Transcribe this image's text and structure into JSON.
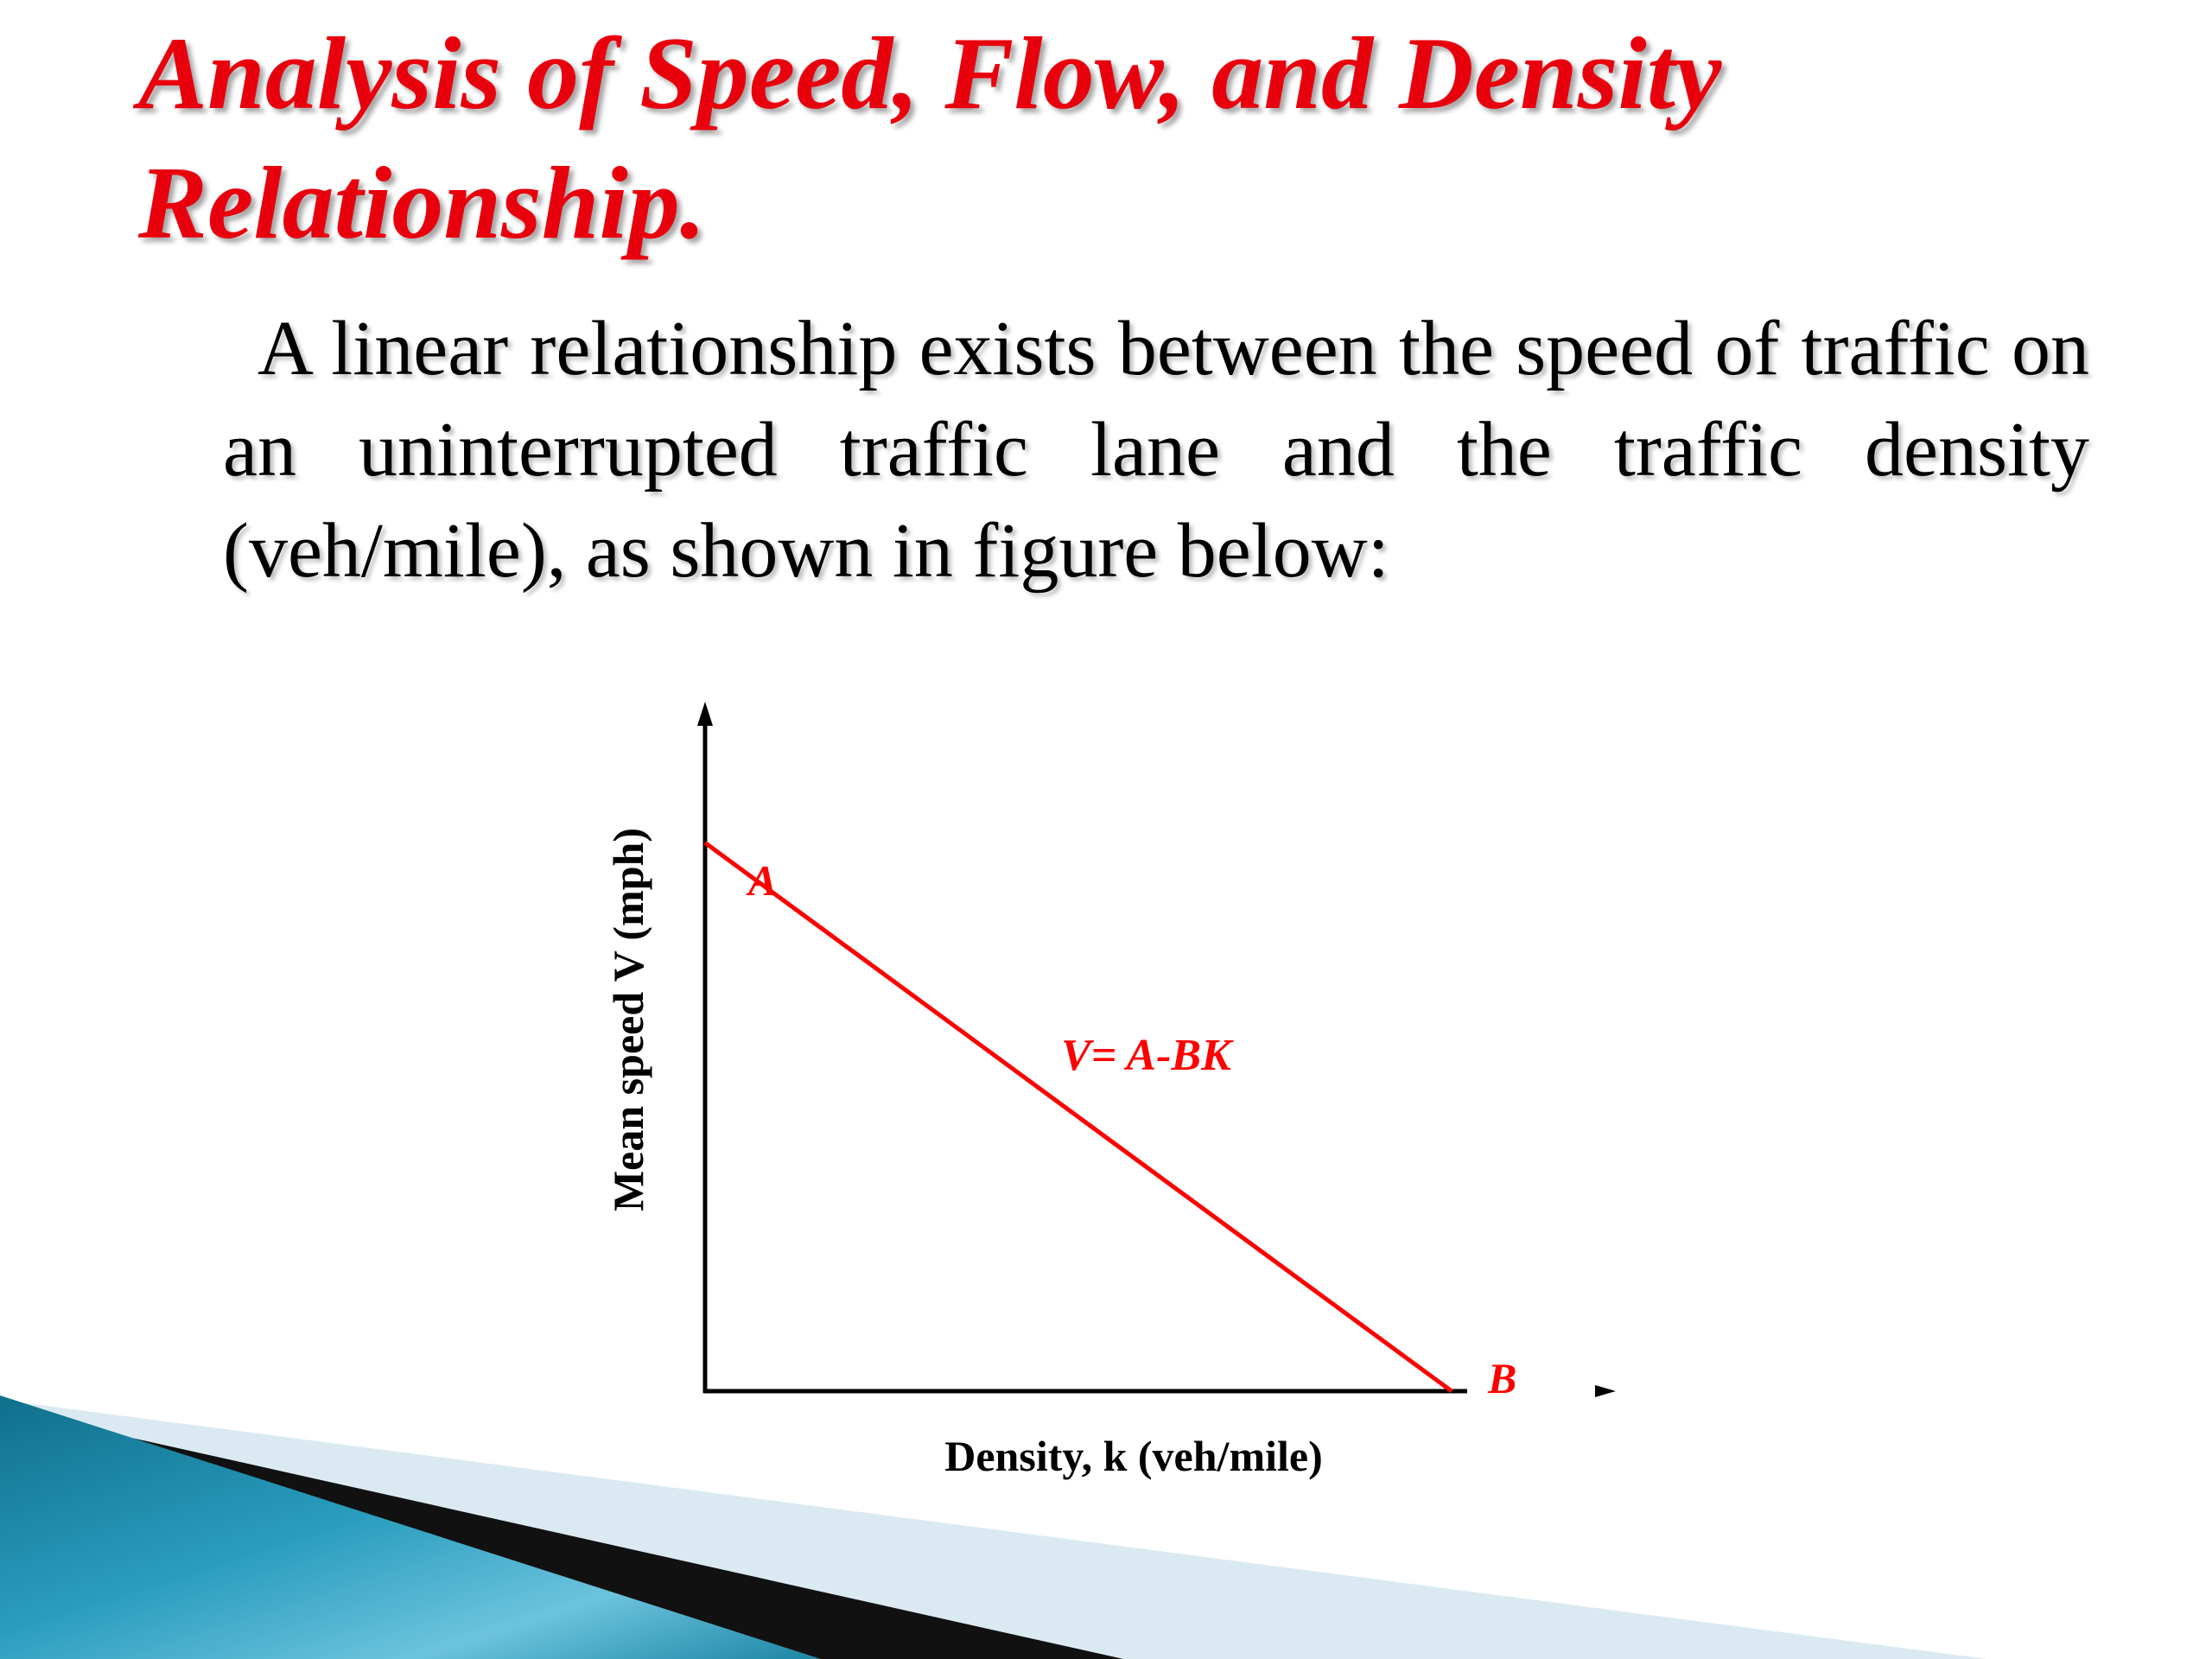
{
  "slide": {
    "title": "Analysis of Speed, Flow, and Density Relationship.",
    "body": "A linear relationship exists between the speed of traffic on an uninterrupted traffic lane and the traffic density (veh/mile), as shown in figure below:"
  },
  "chart_data": {
    "type": "line",
    "title": "",
    "xlabel": "Density, k (veh/mile)",
    "ylabel": "Mean speed V (mph)",
    "grid": false,
    "series": [
      {
        "values": [
          1,
          0
        ],
        "x": [
          0,
          1
        ],
        "color": "#ff0000"
      }
    ],
    "annotations": [
      {
        "text": "A",
        "at": "y-intercept"
      },
      {
        "text": "B",
        "at": "x-intercept"
      },
      {
        "text": "V= A-BK",
        "at": "line"
      }
    ],
    "line_color": "#ff0000",
    "axis_color": "#000000"
  },
  "colors": {
    "title": "#e8000d",
    "accent": "#ff0000",
    "decor_teal": "#1b87a6",
    "decor_light": "#dbeaf2"
  }
}
